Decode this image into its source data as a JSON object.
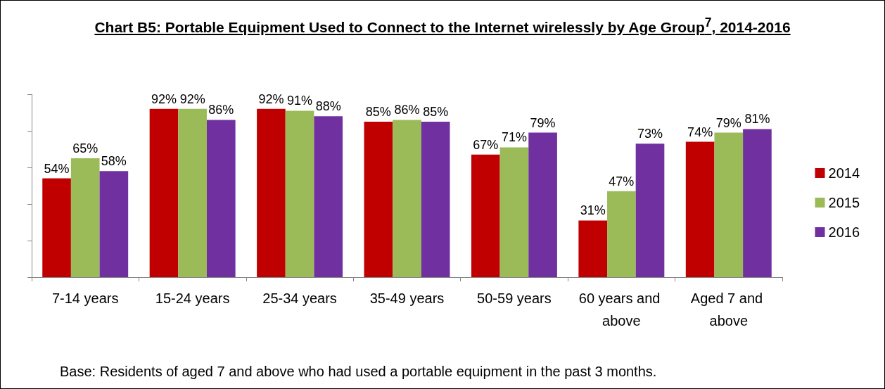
{
  "chart_data": {
    "type": "bar",
    "title": "Chart B5: Portable Equipment Used to Connect to the Internet wirelessly by Age Group$^{7}$, 2014-2016",
    "categories": [
      "7-14 years",
      "15-24 years",
      "25-34 years",
      "35-49 years",
      "50-59 years",
      "60 years and above",
      "Aged 7 and above"
    ],
    "series": [
      {
        "name": "2014",
        "color": "#c00000",
        "values": [
          54,
          92,
          92,
          85,
          67,
          31,
          74
        ],
        "value_labels": [
          "54%",
          "92%",
          "92%",
          "85%",
          "67%",
          "31%",
          "74%"
        ]
      },
      {
        "name": "2015",
        "color": "#9bbb59",
        "values": [
          65,
          92,
          91,
          86,
          71,
          47,
          79
        ],
        "value_labels": [
          "65%",
          "92%",
          "91%",
          "86%",
          "71%",
          "47%",
          "79%"
        ]
      },
      {
        "name": "2016",
        "color": "#7030a0",
        "values": [
          58,
          86,
          88,
          85,
          79,
          73,
          81
        ],
        "value_labels": [
          "58%",
          "86%",
          "88%",
          "85%",
          "79%",
          "73%",
          "81%"
        ]
      }
    ],
    "ylim": [
      0,
      100
    ],
    "yticks": [
      {
        "value": 0,
        "label": null
      },
      {
        "value": 20,
        "label": null
      },
      {
        "value": 40,
        "label": null
      },
      {
        "value": 60,
        "label": null
      },
      {
        "value": 80,
        "label": null
      },
      {
        "value": 100,
        "label": null
      }
    ],
    "tick_labels": "x",
    "grid": false,
    "legend": "right",
    "annotations": [
      "Base:  Residents of aged 7 and above who had used a portable equipment in the past 3 months."
    ]
  }
}
